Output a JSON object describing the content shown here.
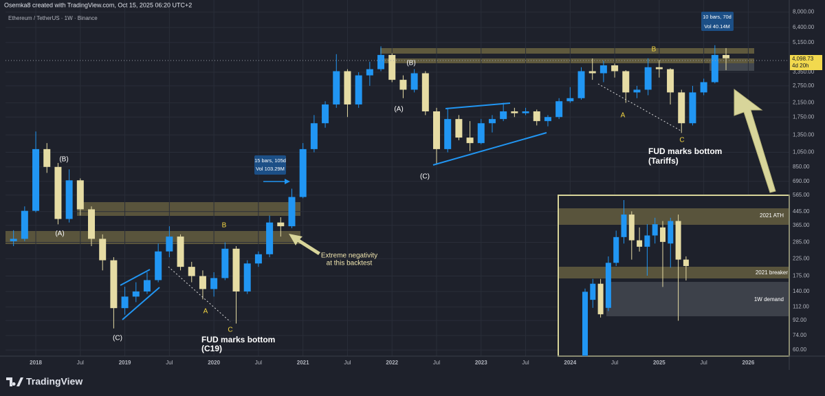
{
  "header": {
    "author_line": "Osemka8 created with TradingView.com, Oct 15, 2025 06:20 UTC+2"
  },
  "footer": {
    "logo": "TradingView"
  },
  "chart_data": [
    {
      "type": "candlestick",
      "title": "Ethereum / TetherUS · 1W · Binance",
      "log_scale": true,
      "grid": true,
      "colors": {
        "up": "#2196f3",
        "down": "#e6dca4"
      },
      "x": [
        2017.75,
        2017.875,
        2018.0,
        2018.125,
        2018.25,
        2018.375,
        2018.5,
        2018.625,
        2018.75,
        2018.875,
        2019.0,
        2019.125,
        2019.25,
        2019.375,
        2019.5,
        2019.625,
        2019.75,
        2019.875,
        2020.0,
        2020.125,
        2020.25,
        2020.375,
        2020.5,
        2020.625,
        2020.75,
        2020.875,
        2021.0,
        2021.125,
        2021.25,
        2021.375,
        2021.5,
        2021.625,
        2021.75,
        2021.875,
        2022.0,
        2022.125,
        2022.25,
        2022.375,
        2022.5,
        2022.625,
        2022.75,
        2022.875,
        2023.0,
        2023.125,
        2023.25,
        2023.375,
        2023.5,
        2023.625,
        2023.75,
        2023.875,
        2024.0,
        2024.125,
        2024.25,
        2024.375,
        2024.5,
        2024.625,
        2024.75,
        2024.875,
        2025.0,
        2025.125,
        2025.25,
        2025.375,
        2025.5,
        2025.625,
        2025.75
      ],
      "open": [
        290,
        300,
        450,
        1100,
        850,
        400,
        700,
        460,
        300,
        220,
        110,
        130,
        140,
        165,
        250,
        310,
        200,
        175,
        145,
        170,
        260,
        140,
        210,
        240,
        380,
        360,
        550,
        1100,
        1600,
        2100,
        3400,
        2100,
        3200,
        3500,
        4300,
        3000,
        2600,
        3300,
        1900,
        1100,
        1700,
        1300,
        1200,
        1600,
        1700,
        1900,
        1850,
        1900,
        1650,
        1750,
        2200,
        2300,
        3400,
        3300,
        3700,
        3400,
        2500,
        2600,
        3600,
        3500,
        2500,
        1600,
        2500,
        2900,
        4300
      ],
      "high": [
        340,
        480,
        1420,
        1200,
        900,
        820,
        720,
        480,
        320,
        230,
        150,
        160,
        185,
        280,
        360,
        320,
        215,
        190,
        185,
        285,
        270,
        220,
        250,
        420,
        410,
        620,
        1200,
        1800,
        2200,
        4350,
        3500,
        3350,
        3900,
        4870,
        4400,
        3200,
        3500,
        3400,
        2000,
        2000,
        1800,
        1650,
        1700,
        1800,
        2150,
        2000,
        2000,
        1950,
        1800,
        2300,
        2700,
        3600,
        4090,
        3950,
        3800,
        3450,
        2750,
        4100,
        4000,
        3550,
        2600,
        2750,
        3050,
        4950,
        4750
      ],
      "low": [
        270,
        290,
        440,
        780,
        370,
        380,
        420,
        270,
        190,
        82,
        100,
        120,
        135,
        160,
        230,
        190,
        160,
        125,
        130,
        165,
        88,
        135,
        200,
        230,
        310,
        350,
        540,
        1050,
        1500,
        2000,
        1750,
        2000,
        2750,
        3400,
        2900,
        2300,
        2500,
        1800,
        880,
        1050,
        1250,
        1070,
        1180,
        1400,
        1650,
        1750,
        1800,
        1550,
        1530,
        1700,
        2150,
        2250,
        3000,
        2900,
        3100,
        2150,
        2300,
        2400,
        3100,
        2100,
        1390,
        1550,
        2400,
        2850,
        3450
      ],
      "close": [
        300,
        450,
        1100,
        850,
        400,
        700,
        460,
        300,
        220,
        110,
        130,
        140,
        165,
        250,
        310,
        200,
        175,
        145,
        170,
        260,
        140,
        210,
        240,
        380,
        360,
        550,
        1100,
        1600,
        2100,
        3400,
        2100,
        3200,
        3500,
        4300,
        3000,
        2600,
        3300,
        1900,
        1100,
        1700,
        1300,
        1200,
        1600,
        1700,
        1900,
        1850,
        1900,
        1650,
        1750,
        2200,
        2300,
        3400,
        3300,
        3700,
        3400,
        2500,
        2600,
        3600,
        3500,
        2500,
        1600,
        2500,
        2900,
        4300,
        4098.73
      ],
      "xlim": [
        2017.66,
        2026.46
      ],
      "xticks": [
        {
          "value": 2018,
          "label": "2018"
        },
        {
          "value": 2018.5,
          "label": "Jul"
        },
        {
          "value": 2019,
          "label": "2019"
        },
        {
          "value": 2019.5,
          "label": "Jul"
        },
        {
          "value": 2020,
          "label": "2020"
        },
        {
          "value": 2020.5,
          "label": "Jul"
        },
        {
          "value": 2021,
          "label": "2021"
        },
        {
          "value": 2021.5,
          "label": "Jul"
        },
        {
          "value": 2022,
          "label": "2022"
        },
        {
          "value": 2022.5,
          "label": "Jul"
        },
        {
          "value": 2023,
          "label": "2023"
        },
        {
          "value": 2023.5,
          "label": "Jul"
        },
        {
          "value": 2024,
          "label": "2024"
        },
        {
          "value": 2024.5,
          "label": "Jul"
        },
        {
          "value": 2025,
          "label": "2025"
        },
        {
          "value": 2025.5,
          "label": "Jul"
        },
        {
          "value": 2026,
          "label": "2026"
        }
      ],
      "ylim": [
        56,
        8800
      ],
      "yticks": [
        {
          "value": 8000,
          "label": "8,000.00"
        },
        {
          "value": 6400,
          "label": "6,400.00"
        },
        {
          "value": 5150,
          "label": "5,150.00"
        },
        {
          "value": 3350,
          "label": "3,350.00"
        },
        {
          "value": 2750,
          "label": "2,750.00"
        },
        {
          "value": 2150,
          "label": "2,150.00"
        },
        {
          "value": 1750,
          "label": "1,750.00"
        },
        {
          "value": 1350,
          "label": "1,350.00"
        },
        {
          "value": 1050,
          "label": "1,050.00"
        },
        {
          "value": 850,
          "label": "850.00"
        },
        {
          "value": 690,
          "label": "690.00"
        },
        {
          "value": 565,
          "label": "565.00"
        },
        {
          "value": 445,
          "label": "445.00"
        },
        {
          "value": 365,
          "label": "365.00"
        },
        {
          "value": 285,
          "label": "285.00"
        },
        {
          "value": 225,
          "label": "225.00"
        },
        {
          "value": 175,
          "label": "175.00"
        },
        {
          "value": 140,
          "label": "140.00"
        },
        {
          "value": 112,
          "label": "112.00"
        },
        {
          "value": 92,
          "label": "92.00"
        },
        {
          "value": 74,
          "label": "74.00"
        },
        {
          "value": 60,
          "label": "60.00"
        }
      ],
      "price_label": "4,098.73",
      "countdown": "4d 20h",
      "measurements": [
        {
          "bars": "15 bars, 105d",
          "volume": "Vol 103.29M"
        },
        {
          "bars": "10 bars, 70d",
          "volume": "Vol 40.14M"
        }
      ],
      "annotations": [
        "(B)",
        "(A)",
        "(C)",
        "B",
        "A",
        "C",
        "FUD marks bottom",
        "(C19)",
        "(B)",
        "(A)",
        "(C)",
        "B",
        "A",
        "C",
        "FUD marks bottom",
        "(Tariffs)",
        "Extreme negativity",
        "at this backtest"
      ]
    },
    {
      "type": "candlestick",
      "ylim": [
        0,
        100
      ],
      "colors": {
        "up": "#2196f3",
        "down": "#e6dca4"
      },
      "open": [
        0,
        35,
        45,
        30,
        58,
        74,
        88,
        72,
        68,
        75,
        80,
        70,
        84,
        60
      ],
      "high": [
        42,
        48,
        48,
        62,
        78,
        97,
        90,
        80,
        82,
        86,
        84,
        86,
        88,
        62
      ],
      "low": [
        0,
        30,
        24,
        28,
        56,
        70,
        60,
        65,
        50,
        70,
        43,
        55,
        22,
        47
      ],
      "close": [
        40,
        45,
        26,
        58,
        74,
        88,
        72,
        68,
        75,
        82,
        71,
        84,
        60,
        56
      ],
      "annotations": [
        "2021 ATH",
        "2021 breaker",
        "1W demand"
      ]
    }
  ]
}
